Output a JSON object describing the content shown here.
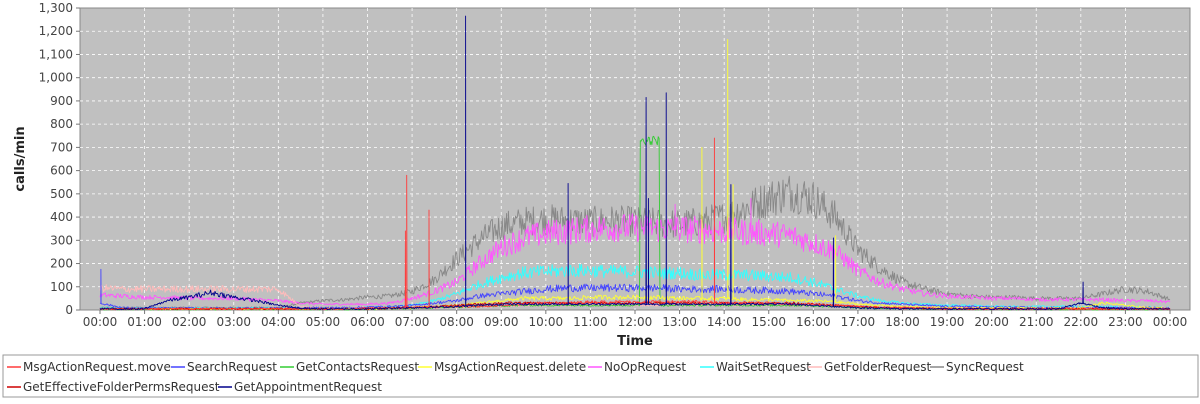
{
  "chart_data": {
    "type": "line",
    "title": "",
    "xlabel": "Time",
    "ylabel": "calls/min",
    "xlim": [
      "00:00",
      "24:00"
    ],
    "ylim": [
      0,
      1300
    ],
    "y_ticks": [
      0,
      100,
      200,
      300,
      400,
      500,
      600,
      700,
      800,
      900,
      1000,
      1100,
      1200,
      1300
    ],
    "y_tick_labels": [
      "0",
      "100",
      "200",
      "300",
      "400",
      "500",
      "600",
      "700",
      "800",
      "900",
      "1,000",
      "1,100",
      "1,200",
      "1,300"
    ],
    "x_ticks": [
      "00:00",
      "01:00",
      "02:00",
      "03:00",
      "04:00",
      "05:00",
      "06:00",
      "07:00",
      "08:00",
      "09:00",
      "10:00",
      "11:00",
      "12:00",
      "13:00",
      "14:00",
      "15:00",
      "16:00",
      "17:00",
      "18:00",
      "19:00",
      "20:00",
      "21:00",
      "22:00",
      "23:00",
      "00:00"
    ],
    "grid": true,
    "legend_position": "bottom",
    "hours": [
      0,
      0.5,
      1,
      1.5,
      2,
      2.5,
      3,
      3.5,
      4,
      4.5,
      5,
      5.5,
      6,
      6.5,
      7,
      7.5,
      8,
      8.5,
      9,
      9.5,
      10,
      10.5,
      11,
      11.5,
      12,
      12.5,
      13,
      13.5,
      14,
      14.5,
      15,
      15.5,
      16,
      16.5,
      17,
      17.5,
      18,
      18.5,
      19,
      19.5,
      20,
      20.5,
      21,
      21.5,
      22,
      22.5,
      23,
      23.5,
      24
    ],
    "series": [
      {
        "name": "MsgActionRequest.move",
        "color": "#ff3b3b",
        "values": [
          5,
          5,
          5,
          5,
          5,
          5,
          5,
          5,
          5,
          5,
          5,
          5,
          8,
          10,
          12,
          12,
          15,
          15,
          20,
          25,
          30,
          30,
          35,
          35,
          35,
          35,
          35,
          35,
          30,
          30,
          30,
          25,
          25,
          20,
          15,
          12,
          10,
          8,
          6,
          5,
          5,
          5,
          5,
          5,
          5,
          5,
          5,
          5,
          5
        ],
        "spikes": [
          [
            6.88,
            580
          ],
          [
            6.85,
            340
          ],
          [
            7.38,
            430
          ],
          [
            13.78,
            740
          ]
        ]
      },
      {
        "name": "SearchRequest",
        "color": "#4444ff",
        "values": [
          30,
          10,
          8,
          8,
          8,
          8,
          8,
          8,
          8,
          8,
          10,
          10,
          12,
          15,
          20,
          30,
          40,
          60,
          70,
          80,
          90,
          95,
          95,
          95,
          95,
          95,
          90,
          90,
          90,
          85,
          85,
          80,
          70,
          60,
          40,
          30,
          25,
          20,
          15,
          15,
          12,
          12,
          10,
          10,
          10,
          10,
          10,
          10,
          8
        ],
        "spikes": [
          [
            0.02,
            175
          ]
        ]
      },
      {
        "name": "GetContactsRequest",
        "color": "#33cc33",
        "values": [
          3,
          3,
          3,
          3,
          3,
          3,
          3,
          3,
          3,
          3,
          3,
          3,
          3,
          5,
          8,
          10,
          12,
          15,
          18,
          20,
          20,
          20,
          20,
          20,
          20,
          20,
          20,
          20,
          20,
          20,
          20,
          20,
          18,
          15,
          10,
          8,
          6,
          5,
          4,
          4,
          3,
          3,
          3,
          3,
          3,
          3,
          3,
          3,
          3
        ],
        "plateaus": [
          [
            12.1,
            12.55,
            730
          ]
        ]
      },
      {
        "name": "MsgActionRequest.delete",
        "color": "#ffff33",
        "values": [
          5,
          5,
          5,
          5,
          5,
          5,
          5,
          5,
          5,
          5,
          5,
          5,
          5,
          8,
          10,
          15,
          20,
          30,
          40,
          50,
          50,
          50,
          55,
          55,
          55,
          55,
          50,
          50,
          50,
          45,
          45,
          40,
          40,
          35,
          25,
          20,
          15,
          12,
          10,
          8,
          8,
          8,
          8,
          8,
          10,
          30,
          20,
          10,
          8
        ],
        "spikes": [
          [
            13.5,
            700
          ],
          [
            14.08,
            1165
          ],
          [
            14.2,
            540
          ],
          [
            16.5,
            320
          ]
        ]
      },
      {
        "name": "NoOpRequest",
        "color": "#ff55ff",
        "values": [
          65,
          60,
          55,
          55,
          50,
          50,
          50,
          45,
          40,
          30,
          25,
          25,
          25,
          30,
          50,
          80,
          120,
          200,
          270,
          310,
          330,
          340,
          350,
          355,
          355,
          350,
          350,
          345,
          340,
          335,
          330,
          320,
          290,
          250,
          170,
          120,
          90,
          70,
          60,
          55,
          50,
          50,
          45,
          45,
          45,
          45,
          40,
          40,
          35
        ],
        "spikes": [
          [
            12.9,
            455
          ],
          [
            14.6,
            480
          ]
        ]
      },
      {
        "name": "WaitSetRequest",
        "color": "#33ffff",
        "values": [
          10,
          8,
          8,
          8,
          8,
          8,
          8,
          8,
          8,
          8,
          8,
          8,
          10,
          12,
          20,
          40,
          70,
          110,
          140,
          160,
          165,
          170,
          170,
          165,
          165,
          160,
          160,
          150,
          150,
          150,
          145,
          140,
          120,
          90,
          60,
          40,
          30,
          25,
          20,
          20,
          15,
          15,
          15,
          15,
          15,
          15,
          12,
          12,
          10
        ]
      },
      {
        "name": "GetFolderRequest",
        "color": "#ffbbbb",
        "values": [
          95,
          90,
          90,
          90,
          90,
          90,
          90,
          90,
          90,
          15,
          10,
          10,
          10,
          10,
          10,
          10,
          12,
          15,
          15,
          20,
          20,
          20,
          20,
          20,
          20,
          20,
          20,
          20,
          20,
          20,
          20,
          20,
          18,
          15,
          12,
          10,
          10,
          10,
          10,
          10,
          10,
          10,
          10,
          10,
          10,
          10,
          10,
          10,
          10
        ]
      },
      {
        "name": "SyncRequest",
        "color": "#888888",
        "values": [
          10,
          10,
          10,
          10,
          10,
          10,
          10,
          10,
          10,
          30,
          40,
          45,
          55,
          60,
          80,
          130,
          220,
          300,
          360,
          380,
          390,
          385,
          380,
          385,
          380,
          375,
          370,
          380,
          400,
          440,
          480,
          510,
          480,
          400,
          260,
          180,
          120,
          90,
          70,
          60,
          55,
          55,
          50,
          50,
          50,
          70,
          90,
          80,
          45
        ]
      },
      {
        "name": "GetEffectiveFolderPermsRequest",
        "color": "#cc0000",
        "values": [
          5,
          5,
          5,
          5,
          5,
          5,
          5,
          5,
          5,
          5,
          5,
          5,
          5,
          8,
          10,
          15,
          20,
          25,
          30,
          30,
          30,
          30,
          30,
          30,
          30,
          30,
          30,
          30,
          30,
          30,
          30,
          30,
          25,
          20,
          15,
          10,
          8,
          6,
          5,
          5,
          5,
          5,
          5,
          5,
          5,
          5,
          5,
          5,
          5
        ]
      },
      {
        "name": "GetAppointmentRequest",
        "color": "#00008b",
        "values": [
          5,
          5,
          5,
          40,
          55,
          75,
          55,
          40,
          20,
          8,
          5,
          5,
          5,
          8,
          10,
          12,
          15,
          20,
          25,
          25,
          25,
          25,
          25,
          25,
          25,
          25,
          25,
          25,
          25,
          25,
          25,
          25,
          20,
          15,
          10,
          8,
          6,
          5,
          5,
          5,
          5,
          5,
          5,
          5,
          30,
          10,
          5,
          5,
          5
        ],
        "spikes": [
          [
            8.2,
            1265
          ],
          [
            10.5,
            545
          ],
          [
            12.25,
            915
          ],
          [
            12.7,
            935
          ],
          [
            12.3,
            480
          ],
          [
            14.15,
            540
          ],
          [
            16.45,
            310
          ],
          [
            22.05,
            120
          ]
        ]
      }
    ]
  }
}
